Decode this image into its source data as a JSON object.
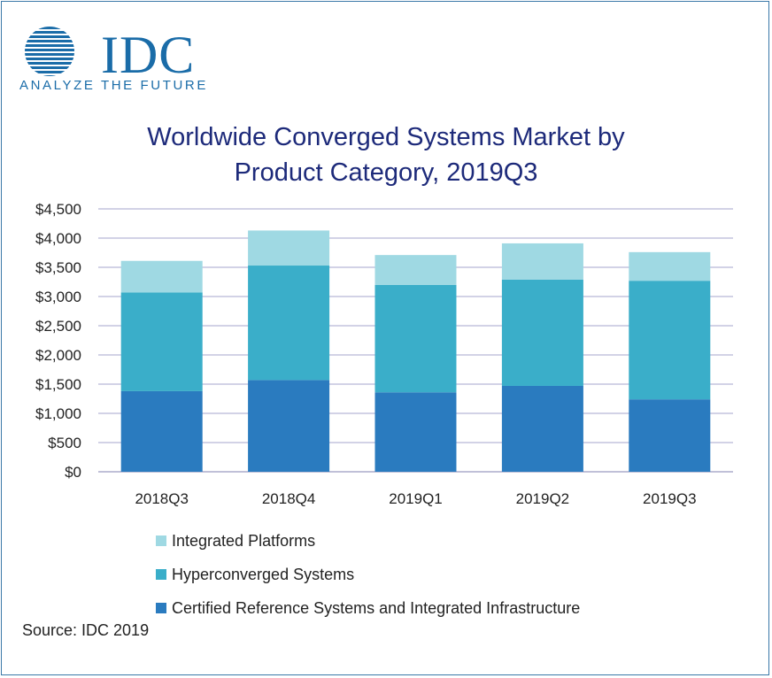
{
  "logo": {
    "text": "IDC",
    "tagline": "ANALYZE THE FUTURE",
    "color": "#1a6ca8"
  },
  "chart_data": {
    "type": "bar",
    "stacked": true,
    "title_lines": [
      "Worldwide Converged Systems Market by",
      "Product Category, 2019Q3"
    ],
    "categories": [
      "2018Q3",
      "2018Q4",
      "2019Q1",
      "2019Q2",
      "2019Q3"
    ],
    "series": [
      {
        "name": "Certified Reference Systems and Integrated Infrastructure",
        "color": "#2a7bbf",
        "values": [
          1380,
          1570,
          1360,
          1470,
          1240
        ]
      },
      {
        "name": "Hyperconverged Systems",
        "color": "#3aaec9",
        "values": [
          1690,
          1960,
          1840,
          1820,
          2030
        ]
      },
      {
        "name": "Integrated Platforms",
        "color": "#9fd9e3",
        "values": [
          540,
          600,
          510,
          620,
          490
        ]
      }
    ],
    "legend_order": [
      "Integrated Platforms",
      "Hyperconverged Systems",
      "Certified Reference Systems and Integrated Infrastructure"
    ],
    "ylim": [
      0,
      4500
    ],
    "yticks": [
      "$0",
      "$500",
      "$1,000",
      "$1,500",
      "$2,000",
      "$2,500",
      "$3,000",
      "$3,500",
      "$4,000",
      "$4,500"
    ],
    "grid": true,
    "legend_position": "bottom"
  },
  "source": "Source: IDC 2019"
}
